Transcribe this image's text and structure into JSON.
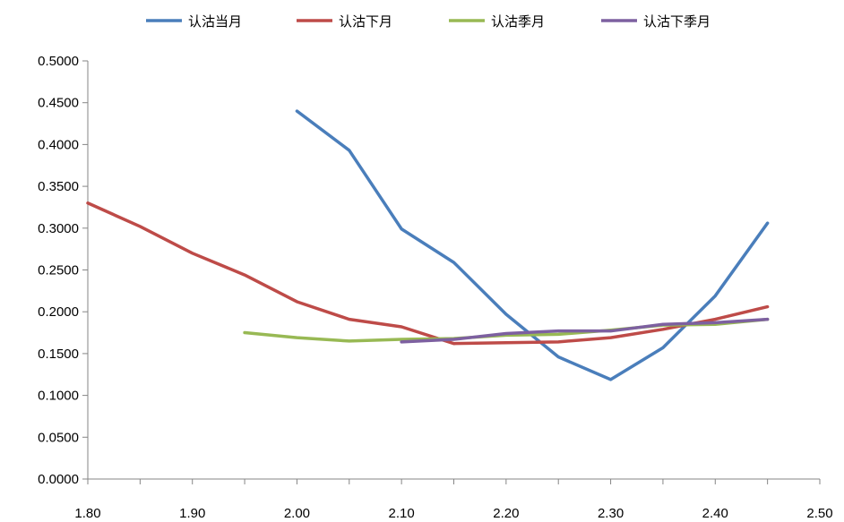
{
  "chart_data": {
    "type": "line",
    "title": "",
    "xlabel": "",
    "ylabel": "",
    "xlim": [
      1.8,
      2.5
    ],
    "ylim": [
      0.0,
      0.5
    ],
    "x_ticks": [
      1.8,
      1.85,
      1.9,
      1.95,
      2.0,
      2.05,
      2.1,
      2.15,
      2.2,
      2.25,
      2.3,
      2.35,
      2.4,
      2.45,
      2.5
    ],
    "x_tick_labels": [
      "1.80",
      "1.90",
      "2.00",
      "2.10",
      "2.20",
      "2.30",
      "2.40",
      "2.50"
    ],
    "y_tick_labels": [
      "0.0000",
      "0.0500",
      "0.1000",
      "0.1500",
      "0.2000",
      "0.2500",
      "0.3000",
      "0.3500",
      "0.4000",
      "0.4500",
      "0.5000"
    ],
    "y_ticks": [
      0,
      0.05,
      0.1,
      0.15,
      0.2,
      0.25,
      0.3,
      0.35,
      0.4,
      0.45,
      0.5
    ],
    "grid": false,
    "legend": "top",
    "series": [
      {
        "name": "认沽当月",
        "color": "#4a7ebb",
        "points": [
          [
            2.0,
            0.44
          ],
          [
            2.05,
            0.393
          ],
          [
            2.1,
            0.299
          ],
          [
            2.15,
            0.259
          ],
          [
            2.2,
            0.197
          ],
          [
            2.25,
            0.146
          ],
          [
            2.3,
            0.119
          ],
          [
            2.35,
            0.157
          ],
          [
            2.4,
            0.219
          ],
          [
            2.45,
            0.306
          ]
        ]
      },
      {
        "name": "认沽下月",
        "color": "#be4b48",
        "points": [
          [
            1.8,
            0.33
          ],
          [
            1.85,
            0.302
          ],
          [
            1.9,
            0.27
          ],
          [
            1.95,
            0.244
          ],
          [
            2.0,
            0.212
          ],
          [
            2.05,
            0.191
          ],
          [
            2.1,
            0.182
          ],
          [
            2.15,
            0.162
          ],
          [
            2.2,
            0.163
          ],
          [
            2.25,
            0.164
          ],
          [
            2.3,
            0.169
          ],
          [
            2.35,
            0.179
          ],
          [
            2.4,
            0.191
          ],
          [
            2.45,
            0.206
          ]
        ]
      },
      {
        "name": "认沽季月",
        "color": "#98b954",
        "points": [
          [
            1.95,
            0.175
          ],
          [
            2.0,
            0.169
          ],
          [
            2.05,
            0.165
          ],
          [
            2.1,
            0.167
          ],
          [
            2.15,
            0.168
          ],
          [
            2.2,
            0.172
          ],
          [
            2.25,
            0.173
          ],
          [
            2.3,
            0.178
          ],
          [
            2.35,
            0.184
          ],
          [
            2.4,
            0.185
          ],
          [
            2.45,
            0.191
          ]
        ]
      },
      {
        "name": "认沽下季月",
        "color": "#7d60a0",
        "points": [
          [
            2.1,
            0.164
          ],
          [
            2.15,
            0.167
          ],
          [
            2.2,
            0.174
          ],
          [
            2.25,
            0.177
          ],
          [
            2.3,
            0.177
          ],
          [
            2.35,
            0.185
          ],
          [
            2.4,
            0.187
          ],
          [
            2.45,
            0.191
          ]
        ]
      }
    ]
  }
}
